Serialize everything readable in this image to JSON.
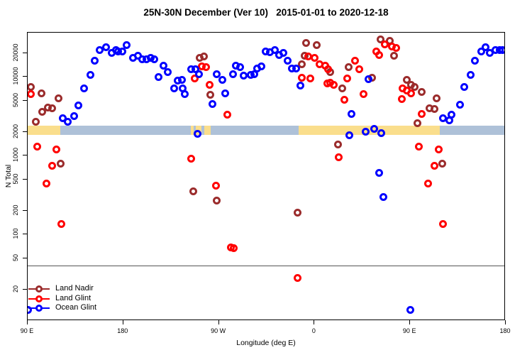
{
  "title": "25N-30N December (Ver 10)   2015-01-01 to 2020-12-18",
  "axes": {
    "x": {
      "label": "Longitude (deg E)",
      "note": "wrapped longitude axis: 90E eastward through 180, 90W, 0, back to 90E and 180",
      "ticks": [
        {
          "pos": 90,
          "label": "90 E"
        },
        {
          "pos": 180,
          "label": "180"
        },
        {
          "pos": 270,
          "label": "90 W"
        },
        {
          "pos": 360,
          "label": "0"
        },
        {
          "pos": 450,
          "label": "90 E"
        },
        {
          "pos": 540,
          "label": "180"
        }
      ]
    },
    "y": {
      "label": "N Total",
      "scale": "log10",
      "ticks": [
        20,
        50,
        100,
        200,
        500,
        1000,
        2000,
        5000,
        10000,
        20000
      ]
    }
  },
  "legend": {
    "items": [
      {
        "label": "Land Nadir",
        "color": "#9B2C2C"
      },
      {
        "label": "Land Glint",
        "color": "#FF0000"
      },
      {
        "label": "Ocean Glint",
        "color": "#0000FF"
      }
    ]
  },
  "chart_data": {
    "type": "scatter",
    "title": "25N-30N December (Ver 10)   2015-01-01 to 2020-12-18",
    "xlabel": "Longitude (deg E)",
    "ylabel": "N Total",
    "xlim": [
      90,
      540
    ],
    "ylim_log": [
      10,
      32000
    ],
    "reference_line": {
      "value": 40,
      "color": "#555555"
    },
    "surface_band": {
      "center_value": 2000,
      "value_range": [
        1800,
        2400
      ],
      "land_color": "#FADE8C",
      "ocean_color": "#AEC1D8",
      "segments": [
        {
          "type": "land",
          "from": 90,
          "to": 121
        },
        {
          "type": "ocean",
          "from": 121,
          "to": 243.5
        },
        {
          "type": "land",
          "from": 243.5,
          "to": 246.5
        },
        {
          "type": "ocean",
          "from": 246.5,
          "to": 248.5
        },
        {
          "type": "land",
          "from": 248.5,
          "to": 253.5
        },
        {
          "type": "ocean",
          "from": 253.5,
          "to": 256.5
        },
        {
          "type": "land",
          "from": 256.5,
          "to": 262
        },
        {
          "type": "ocean",
          "from": 262,
          "to": 345
        },
        {
          "type": "land",
          "from": 345,
          "to": 478
        },
        {
          "type": "ocean",
          "from": 478,
          "to": 540
        }
      ]
    },
    "series": [
      {
        "name": "Land Nadir",
        "color": "#9B2C2C",
        "points": [
          [
            93,
            7500
          ],
          [
            103,
            6200
          ],
          [
            119,
            5400
          ],
          [
            109,
            4100
          ],
          [
            113,
            4000
          ],
          [
            104,
            3600
          ],
          [
            98,
            2700
          ],
          [
            121,
            790
          ],
          [
            252,
            17600
          ],
          [
            256,
            18000
          ],
          [
            262,
            5900
          ],
          [
            246,
            350
          ],
          [
            268,
            270
          ],
          [
            352,
            27200
          ],
          [
            362,
            25100
          ],
          [
            351,
            18700
          ],
          [
            348,
            14600
          ],
          [
            375,
            11400
          ],
          [
            392,
            13200
          ],
          [
            386,
            7100
          ],
          [
            414,
            9700
          ],
          [
            344,
            190
          ],
          [
            382,
            1400
          ],
          [
            422,
            30000
          ],
          [
            431,
            28400
          ],
          [
            435,
            18700
          ],
          [
            447,
            9100
          ],
          [
            451,
            7900
          ],
          [
            454,
            7500
          ],
          [
            461,
            6400
          ],
          [
            475,
            5400
          ],
          [
            468,
            4000
          ],
          [
            473,
            3950
          ],
          [
            457,
            2600
          ],
          [
            480,
            790
          ]
        ]
      },
      {
        "name": "Land Glint",
        "color": "#FF0000",
        "points": [
          [
            93,
            6100
          ],
          [
            99,
            1300
          ],
          [
            117,
            1200
          ],
          [
            113,
            750
          ],
          [
            108,
            440
          ],
          [
            122,
            135
          ],
          [
            254,
            13500
          ],
          [
            258,
            13200
          ],
          [
            247,
            9500
          ],
          [
            261,
            7900
          ],
          [
            278,
            3300
          ],
          [
            244,
            910
          ],
          [
            267,
            420
          ],
          [
            281,
            68
          ],
          [
            284,
            67
          ],
          [
            354,
            18000
          ],
          [
            360,
            17300
          ],
          [
            365,
            14600
          ],
          [
            370,
            14000
          ],
          [
            373,
            12600
          ],
          [
            348,
            9700
          ],
          [
            356,
            9500
          ],
          [
            372,
            8200
          ],
          [
            375,
            8400
          ],
          [
            378,
            7900
          ],
          [
            391,
            9500
          ],
          [
            402,
            12600
          ],
          [
            398,
            15900
          ],
          [
            406,
            6100
          ],
          [
            388,
            5100
          ],
          [
            418,
            21200
          ],
          [
            421,
            19100
          ],
          [
            383,
            950
          ],
          [
            344,
            28
          ],
          [
            426,
            25600
          ],
          [
            433,
            24500
          ],
          [
            437,
            23500
          ],
          [
            443,
            7200
          ],
          [
            447,
            6700
          ],
          [
            451,
            6200
          ],
          [
            442,
            5200
          ],
          [
            461,
            3400
          ],
          [
            458,
            1300
          ],
          [
            477,
            1200
          ],
          [
            473,
            750
          ],
          [
            467,
            440
          ],
          [
            481,
            135
          ]
        ]
      },
      {
        "name": "Ocean Glint",
        "color": "#0000FF",
        "points": [
          [
            123,
            3000
          ],
          [
            128,
            2700
          ],
          [
            134,
            3200
          ],
          [
            138,
            4300
          ],
          [
            143,
            7200
          ],
          [
            149,
            10500
          ],
          [
            153,
            15900
          ],
          [
            158,
            21700
          ],
          [
            164,
            24000
          ],
          [
            169,
            20000
          ],
          [
            173,
            22100
          ],
          [
            175,
            21200
          ],
          [
            179,
            21200
          ],
          [
            183,
            25100
          ],
          [
            189,
            17300
          ],
          [
            194,
            18400
          ],
          [
            198,
            16600
          ],
          [
            202,
            16900
          ],
          [
            206,
            17300
          ],
          [
            209,
            16600
          ],
          [
            213,
            9900
          ],
          [
            218,
            14000
          ],
          [
            222,
            11400
          ],
          [
            228,
            7200
          ],
          [
            231,
            8900
          ],
          [
            235,
            9100
          ],
          [
            236,
            7100
          ],
          [
            238,
            6100
          ],
          [
            244,
            12600
          ],
          [
            248,
            12400
          ],
          [
            251,
            10900
          ],
          [
            250,
            1900
          ],
          [
            264,
            4500
          ],
          [
            268,
            10900
          ],
          [
            273,
            9100
          ],
          [
            276,
            6200
          ],
          [
            283,
            10900
          ],
          [
            286,
            14000
          ],
          [
            290,
            13200
          ],
          [
            293,
            10300
          ],
          [
            300,
            10500
          ],
          [
            303,
            10900
          ],
          [
            306,
            12900
          ],
          [
            310,
            13500
          ],
          [
            314,
            21200
          ],
          [
            318,
            20400
          ],
          [
            323,
            22100
          ],
          [
            327,
            19100
          ],
          [
            331,
            20000
          ],
          [
            335,
            15900
          ],
          [
            339,
            12900
          ],
          [
            343,
            12900
          ],
          [
            347,
            7700
          ],
          [
            395,
            3400
          ],
          [
            411,
            9300
          ],
          [
            393,
            1800
          ],
          [
            408,
            2000
          ],
          [
            416,
            2200
          ],
          [
            423,
            1950
          ],
          [
            421,
            600
          ],
          [
            425,
            300
          ],
          [
            450,
            11
          ],
          [
            90,
            11
          ],
          [
            481,
            3000
          ],
          [
            487,
            2800
          ],
          [
            489,
            3300
          ],
          [
            497,
            4400
          ],
          [
            501,
            7400
          ],
          [
            507,
            10700
          ],
          [
            511,
            15900
          ],
          [
            517,
            21200
          ],
          [
            521,
            24000
          ],
          [
            525,
            20000
          ],
          [
            530,
            22100
          ],
          [
            534,
            21700
          ],
          [
            537,
            21700
          ]
        ]
      }
    ]
  }
}
